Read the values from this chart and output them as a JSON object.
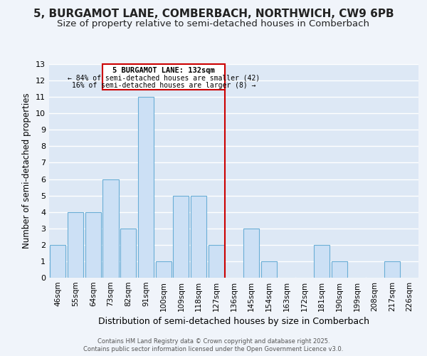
{
  "title_line1": "5, BURGAMOT LANE, COMBERBACH, NORTHWICH, CW9 6PB",
  "title_line2": "Size of property relative to semi-detached houses in Comberbach",
  "xlabel": "Distribution of semi-detached houses by size in Comberbach",
  "ylabel": "Number of semi-detached properties",
  "footer_line1": "Contains HM Land Registry data © Crown copyright and database right 2025.",
  "footer_line2": "Contains public sector information licensed under the Open Government Licence v3.0.",
  "categories": [
    "46sqm",
    "55sqm",
    "64sqm",
    "73sqm",
    "82sqm",
    "91sqm",
    "100sqm",
    "109sqm",
    "118sqm",
    "127sqm",
    "136sqm",
    "145sqm",
    "154sqm",
    "163sqm",
    "172sqm",
    "181sqm",
    "190sqm",
    "199sqm",
    "208sqm",
    "217sqm",
    "226sqm"
  ],
  "values": [
    2,
    4,
    4,
    6,
    3,
    11,
    1,
    5,
    5,
    2,
    0,
    3,
    1,
    0,
    0,
    2,
    1,
    0,
    0,
    1,
    0
  ],
  "bar_color": "#cce0f5",
  "bar_edge_color": "#6aaed6",
  "vline_x_index": 9.5,
  "annotation_title": "5 BURGAMOT LANE: 132sqm",
  "annotation_line2": "← 84% of semi-detached houses are smaller (42)",
  "annotation_line3": "16% of semi-detached houses are larger (8) →",
  "annotation_box_color": "#cc0000",
  "vline_color": "#cc0000",
  "ylim": [
    0,
    13
  ],
  "yticks": [
    0,
    1,
    2,
    3,
    4,
    5,
    6,
    7,
    8,
    9,
    10,
    11,
    12,
    13
  ],
  "bg_color": "#dde8f5",
  "grid_color": "#ffffff",
  "fig_bg_color": "#f0f4fa"
}
